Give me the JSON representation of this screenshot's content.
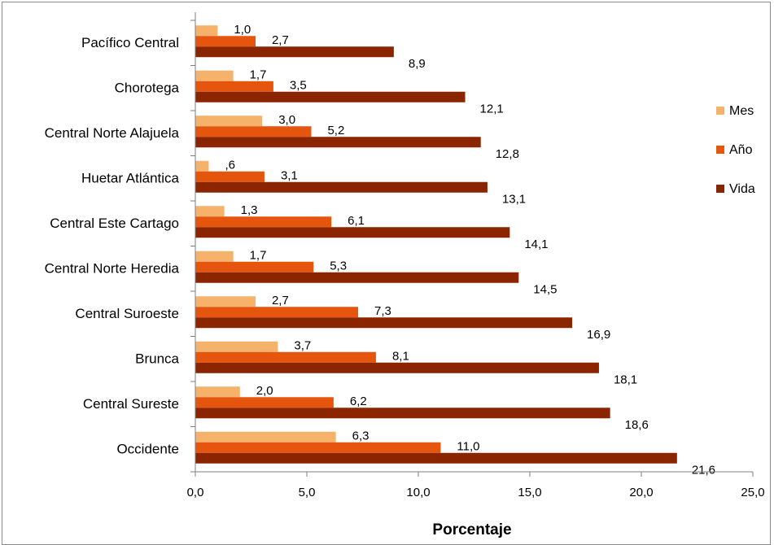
{
  "chart_data": {
    "type": "bar",
    "orientation": "horizontal",
    "categories": [
      "Pacífico Central",
      "Chorotega",
      "Central Norte Alajuela",
      "Huetar Atlántica",
      "Central Este Cartago",
      "Central Norte Heredia",
      "Central Suroeste",
      "Brunca",
      "Central Sureste",
      "Occidente"
    ],
    "series": [
      {
        "name": "Mes",
        "color": "#f6b26b",
        "values": [
          1.0,
          1.7,
          3.0,
          0.6,
          1.3,
          1.7,
          2.7,
          3.7,
          2.0,
          6.3
        ],
        "labels": [
          "1,0",
          "1,7",
          "3,0",
          ",6",
          "1,3",
          "1,7",
          "2,7",
          "3,7",
          "2,0",
          "6,3"
        ]
      },
      {
        "name": "Año",
        "color": "#e6550d",
        "values": [
          2.7,
          3.5,
          5.2,
          3.1,
          6.1,
          5.3,
          7.3,
          8.1,
          6.2,
          11.0
        ],
        "labels": [
          "2,7",
          "3,5",
          "5,2",
          "3,1",
          "6,1",
          "5,3",
          "7,3",
          "8,1",
          "6,2",
          "11,0"
        ]
      },
      {
        "name": "Vida",
        "color": "#8b2500",
        "values": [
          8.9,
          12.1,
          12.8,
          13.1,
          14.1,
          14.5,
          16.9,
          18.1,
          18.6,
          21.6
        ],
        "labels": [
          "8,9",
          "12,1",
          "12,8",
          "13,1",
          "14,1",
          "14,5",
          "16,9",
          "18,1",
          "18,6",
          "21,6"
        ]
      }
    ],
    "xlabel": "Porcentaje",
    "xlim": [
      0,
      25
    ],
    "xticks": [
      "0,0",
      "5,0",
      "10,0",
      "15,0",
      "20,0",
      "25,0"
    ],
    "grid": false,
    "legend_position": "right"
  }
}
